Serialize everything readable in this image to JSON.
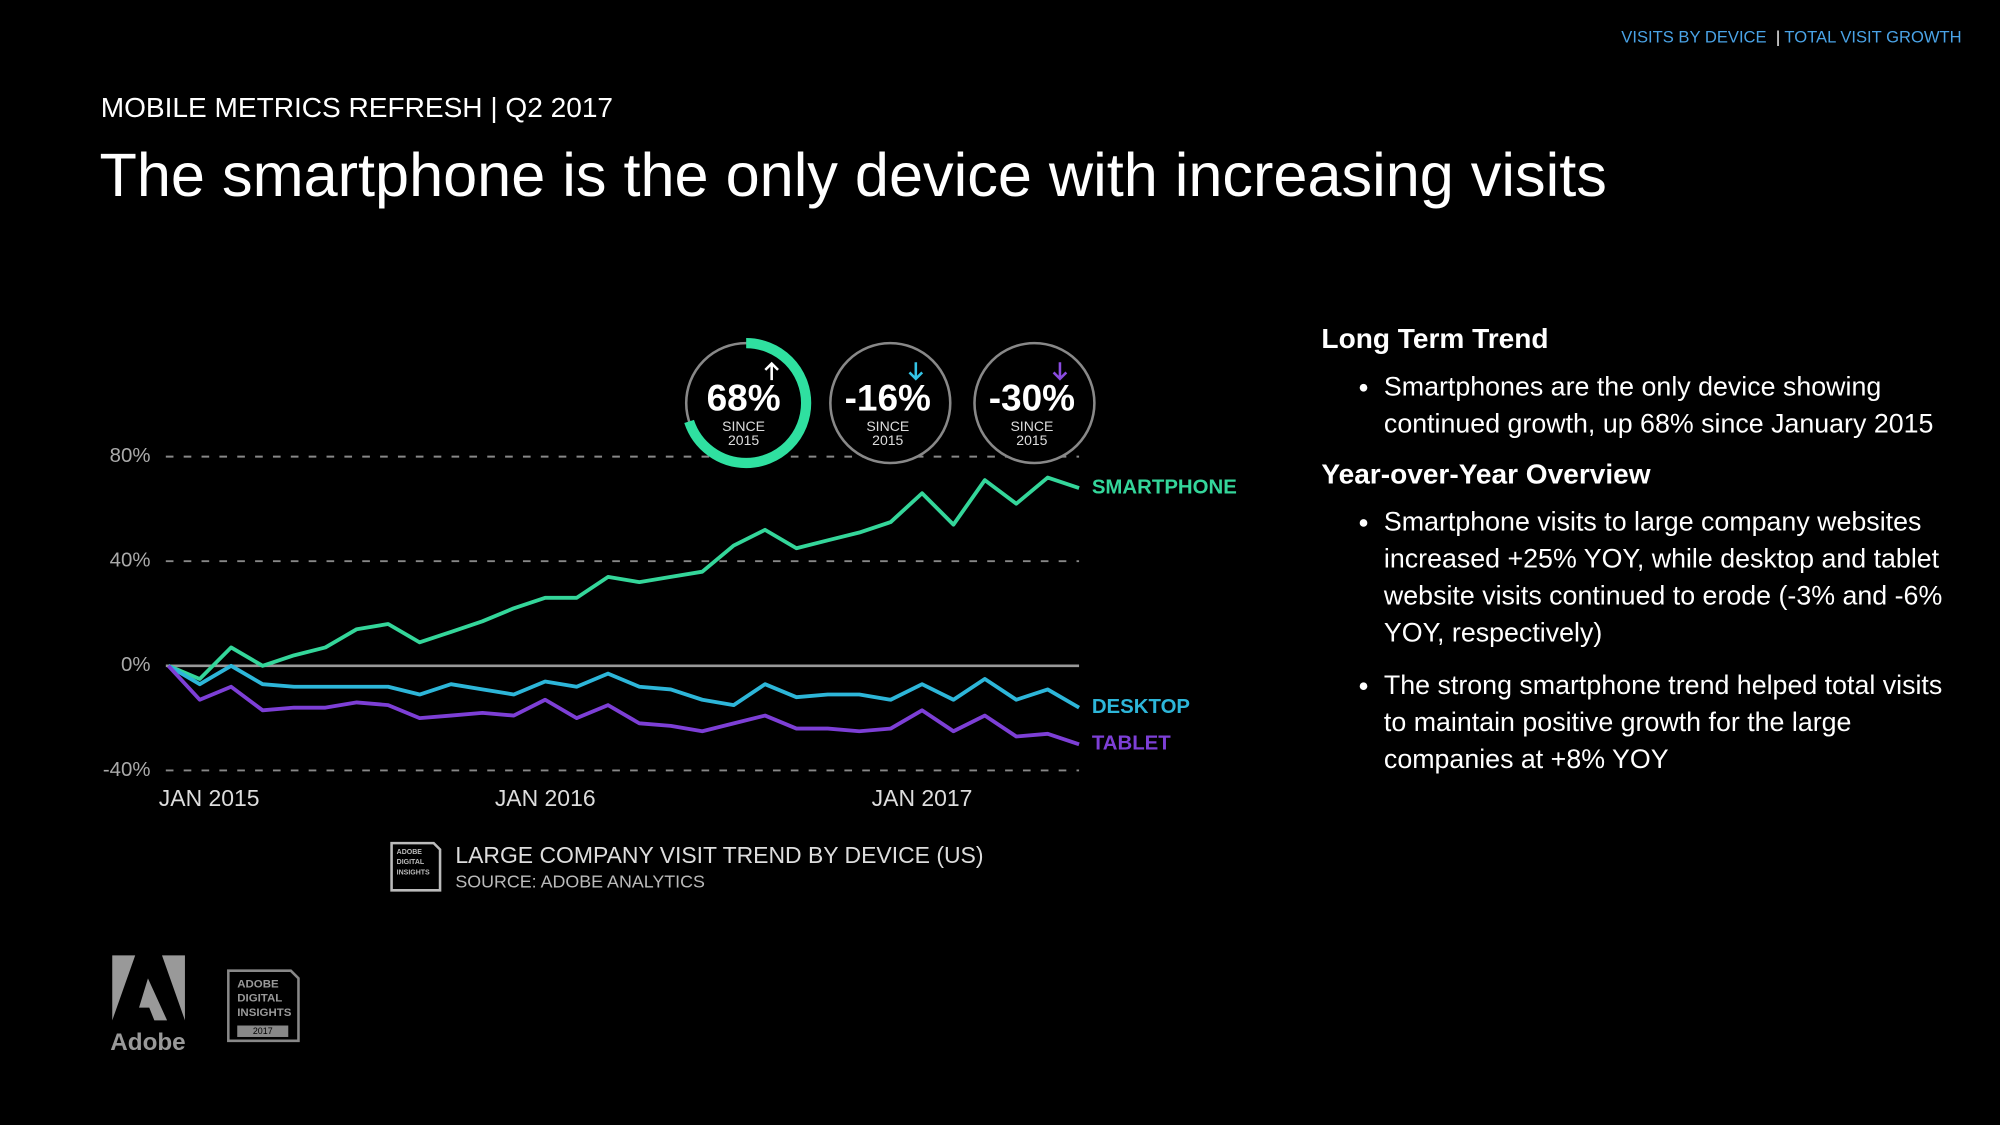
{
  "nav": [
    "VISITS BY DEVICE",
    "TOTAL VISIT GROWTH"
  ],
  "nav_separator": "|",
  "header": {
    "kicker": "MOBILE METRICS REFRESH | Q2 2017",
    "title": "The smartphone is the only device with increasing visits"
  },
  "badges": [
    {
      "value": "68%",
      "since": "SINCE",
      "year": "2015",
      "color": "#2fe0a0",
      "arrow": "up"
    },
    {
      "value": "-16%",
      "since": "SINCE",
      "year": "2015",
      "color": "#33c4e6",
      "arrow": "down"
    },
    {
      "value": "-30%",
      "since": "SINCE",
      "year": "2015",
      "color": "#8a4be0",
      "arrow": "down"
    }
  ],
  "chart_data": {
    "type": "line",
    "title": "LARGE COMPANY VISIT TREND BY DEVICE (US)",
    "source": "SOURCE: ADOBE ANALYTICS",
    "categories": [
      "JAN 2015",
      null,
      null,
      null,
      null,
      null,
      null,
      null,
      null,
      null,
      null,
      null,
      "JAN 2016",
      null,
      null,
      null,
      null,
      null,
      null,
      null,
      null,
      null,
      null,
      null,
      "JAN 2017",
      null,
      null,
      null,
      null,
      null
    ],
    "series": [
      {
        "name": "SMARTPHONE",
        "color": "#34d69a",
        "values": [
          0,
          -5,
          7,
          0,
          4,
          7,
          14,
          16,
          9,
          13,
          17,
          22,
          26,
          26,
          34,
          32,
          34,
          36,
          46,
          52,
          45,
          48,
          51,
          55,
          66,
          54,
          71,
          62,
          72,
          68
        ]
      },
      {
        "name": "DESKTOP",
        "color": "#2db6d9",
        "values": [
          0,
          -7,
          0,
          -7,
          -8,
          -8,
          -8,
          -8,
          -11,
          -7,
          -9,
          -11,
          -6,
          -8,
          -3,
          -8,
          -9,
          -13,
          -15,
          -7,
          -12,
          -11,
          -11,
          -13,
          -7,
          -13,
          -5,
          -13,
          -9,
          -16
        ]
      },
      {
        "name": "TABLET",
        "color": "#7d3fd6",
        "values": [
          0,
          -13,
          -8,
          -17,
          -16,
          -16,
          -14,
          -15,
          -20,
          -19,
          -18,
          -19,
          -13,
          -20,
          -15,
          -22,
          -23,
          -25,
          -22,
          -19,
          -24,
          -24,
          -25,
          -24,
          -17,
          -25,
          -19,
          -27,
          -26,
          -30
        ]
      }
    ],
    "ylim": [
      -40,
      80
    ],
    "yticks": [
      {
        "value": -40,
        "label": "-40%"
      },
      {
        "value": 0,
        "label": "0%"
      },
      {
        "value": 40,
        "label": "40%"
      },
      {
        "value": 80,
        "label": "80%"
      }
    ],
    "grid": true
  },
  "sections": [
    {
      "heading": "Long Term Trend",
      "bullets": [
        "Smartphones are the only device showing continued growth, up 68% since January 2015"
      ]
    },
    {
      "heading": "Year-over-Year Overview",
      "bullets": [
        "Smartphone visits to large company websites increased +25% YOY, while desktop and tablet website visits continued to erode (-3% and -6% YOY, respectively)",
        "The strong smartphone trend helped total visits to maintain positive growth for the large companies at +8% YOY"
      ]
    }
  ],
  "logo": "Adobe",
  "insights_badge": [
    "ADOBE",
    "DIGITAL",
    "INSIGHTS",
    "2017"
  ]
}
